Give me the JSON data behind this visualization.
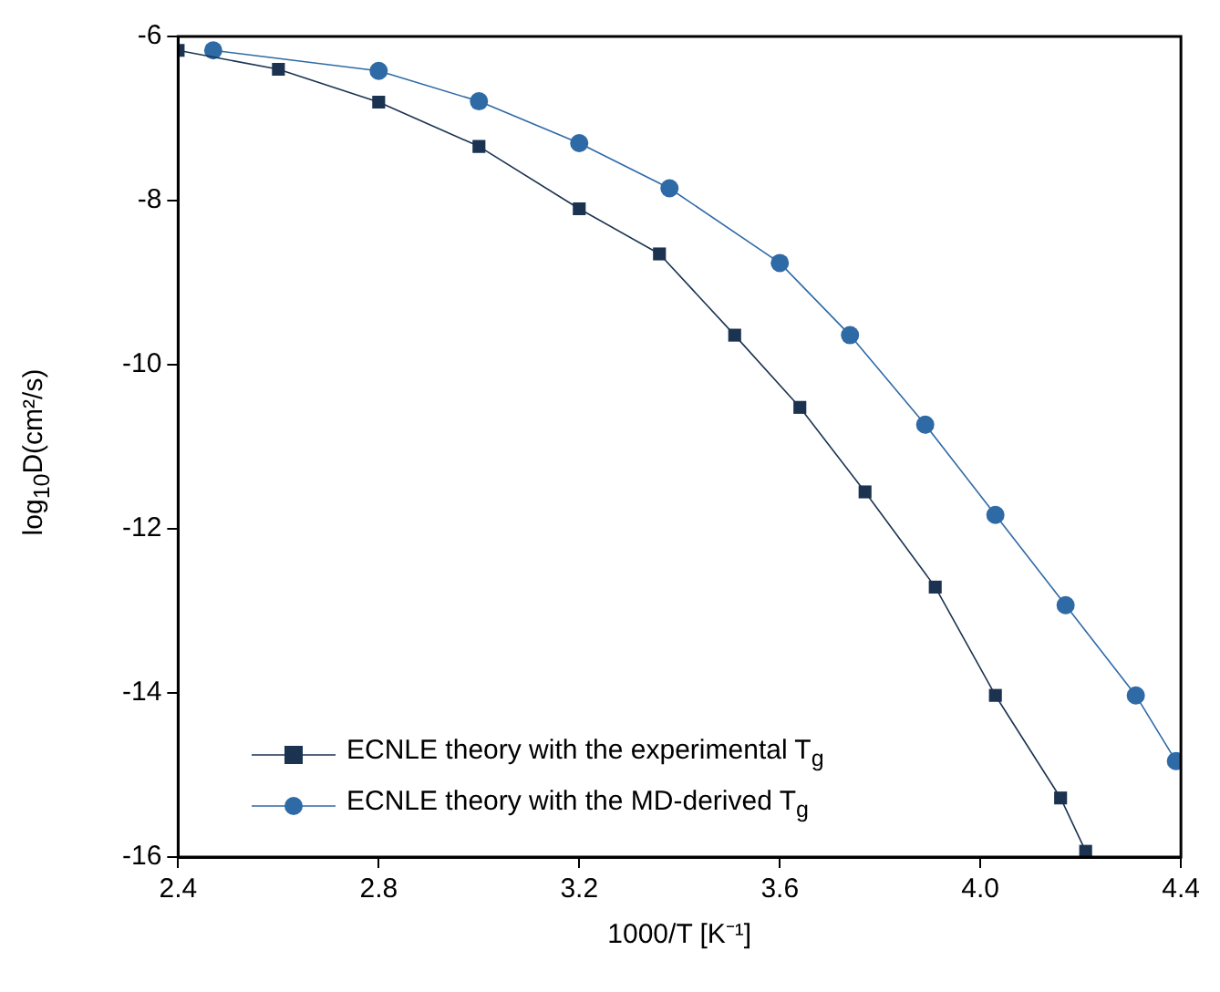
{
  "chart_data": {
    "type": "line",
    "xlabel": "1000/T [K⁻¹]",
    "ylabel": "log$_{10}$D(cm²/s)",
    "xlim": [
      2.4,
      4.4
    ],
    "xticks": [
      {
        "value": 2.4,
        "label": "2.4"
      },
      {
        "value": 2.8,
        "label": "2.8"
      },
      {
        "value": 3.2,
        "label": "3.2"
      },
      {
        "value": 3.6,
        "label": "3.6"
      },
      {
        "value": 4.0,
        "label": "4.0"
      },
      {
        "value": 4.4,
        "label": "4.4"
      }
    ],
    "ylim": [
      -16,
      -6
    ],
    "yticks": [
      -16,
      -14,
      -12,
      -10,
      -8,
      -6
    ],
    "grid": false,
    "legend": "bottom left",
    "line_style": "solid",
    "series": [
      {
        "name": "ECNLE theory with the experimental T$_{g}$",
        "color": "#1b3350",
        "marker": "square",
        "x": [
          2.4,
          2.6,
          2.8,
          3.0,
          3.2,
          3.36,
          3.51,
          3.64,
          3.77,
          3.91,
          4.03,
          4.16,
          4.21
        ],
        "values": [
          -6.17,
          -6.4,
          -6.8,
          -7.34,
          -8.1,
          -8.65,
          -9.64,
          -10.52,
          -11.55,
          -12.71,
          -14.03,
          -15.28,
          -15.93
        ]
      },
      {
        "name": "ECNLE theory with the MD-derived T$_{g}$",
        "color": "#2e6aa6",
        "marker": "circle",
        "x": [
          2.47,
          2.8,
          3.0,
          3.2,
          3.38,
          3.6,
          3.74,
          3.89,
          4.03,
          4.17,
          4.31,
          4.39
        ],
        "values": [
          -6.17,
          -6.42,
          -6.79,
          -7.3,
          -7.85,
          -8.76,
          -9.64,
          -10.73,
          -11.83,
          -12.93,
          -14.03,
          -14.83
        ]
      }
    ]
  }
}
